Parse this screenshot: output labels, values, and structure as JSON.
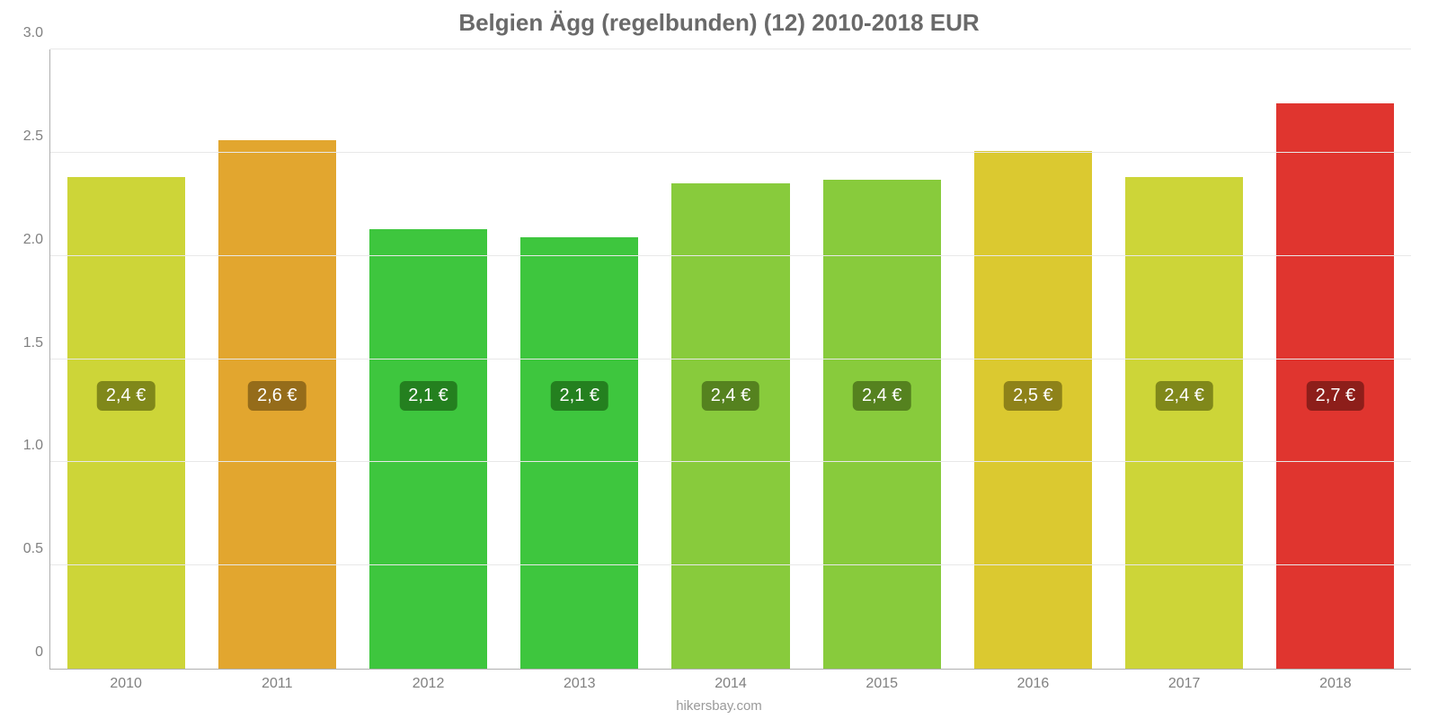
{
  "chart": {
    "type": "bar",
    "title": "Belgien Ägg (regelbunden) (12) 2010-2018 EUR",
    "title_color": "#6a6a6a",
    "title_fontsize": 26,
    "background_color": "#ffffff",
    "grid_color": "#e8e8e8",
    "axis_color": "#b0b0b0",
    "tick_color": "#808080",
    "tick_fontsize": 16,
    "credit": "hikersbay.com",
    "credit_color": "#9a9a9a",
    "ylim": [
      0,
      3.0
    ],
    "ytick_step": 0.5,
    "yticks_labels": [
      "0",
      "0.5",
      "1.0",
      "1.5",
      "2.0",
      "2.5",
      "3.0"
    ],
    "categories": [
      "2010",
      "2011",
      "2012",
      "2013",
      "2014",
      "2015",
      "2016",
      "2017",
      "2018"
    ],
    "values": [
      2.38,
      2.56,
      2.13,
      2.09,
      2.35,
      2.37,
      2.51,
      2.38,
      2.74
    ],
    "bar_labels": [
      "2,4 €",
      "2,6 €",
      "2,1 €",
      "2,1 €",
      "2,4 €",
      "2,4 €",
      "2,5 €",
      "2,4 €",
      "2,7 €"
    ],
    "bar_colors": [
      "#cdd538",
      "#e2a62f",
      "#3ec63e",
      "#3ec63e",
      "#88cb3c",
      "#88cb3c",
      "#dbc930",
      "#cdd538",
      "#e0352f"
    ],
    "bar_label_bg": [
      "#80881a",
      "#956c1a",
      "#24801f",
      "#24801f",
      "#55821f",
      "#55821f",
      "#8e8219",
      "#80881a",
      "#8d1e1a"
    ],
    "bar_label_color": "#ffffff",
    "bar_label_fontsize": 20,
    "bar_width_ratio": 0.78,
    "label_y_value": 1.25
  }
}
